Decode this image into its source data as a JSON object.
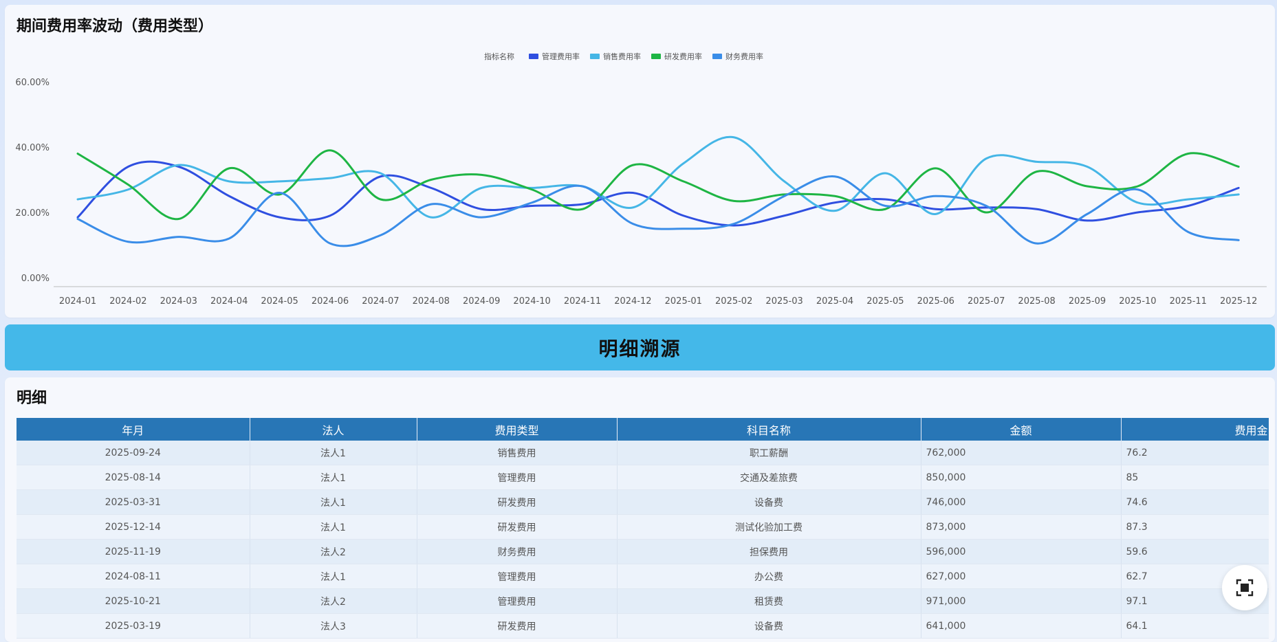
{
  "chart_section": {
    "title": "期间费用率波动（费用类型）"
  },
  "chart_data": {
    "type": "line",
    "title": "期间费用率波动（费用类型）",
    "legend_title": "指标名称",
    "legend_position": "top-center",
    "categories": [
      "2024-01",
      "2024-02",
      "2024-03",
      "2024-04",
      "2024-05",
      "2024-06",
      "2024-07",
      "2024-08",
      "2024-09",
      "2024-10",
      "2024-11",
      "2024-12",
      "2025-01",
      "2025-02",
      "2025-03",
      "2025-04",
      "2025-05",
      "2025-06",
      "2025-07",
      "2025-08",
      "2025-09",
      "2025-10",
      "2025-11",
      "2025-12"
    ],
    "y_ticks": [
      "0.00%",
      "20.00%",
      "40.00%",
      "60.00%"
    ],
    "ylim": [
      0,
      60
    ],
    "grid": false,
    "series": [
      {
        "name": "管理费用率",
        "color": "#2f4fe0",
        "values": [
          18.5,
          34,
          34,
          25,
          18.5,
          19,
          31,
          27.5,
          21,
          22,
          22.5,
          26,
          19,
          16,
          19,
          23,
          24,
          21,
          21.5,
          21,
          17.5,
          20,
          22,
          27.5
        ]
      },
      {
        "name": "销售费用率",
        "color": "#45b6e6",
        "values": [
          24,
          27,
          34.5,
          29.5,
          29.5,
          30.5,
          32,
          18.5,
          27.5,
          27.5,
          28,
          21.5,
          35,
          43,
          29.5,
          20.5,
          32,
          19.5,
          36.5,
          35.5,
          34,
          23,
          24,
          25.5
        ]
      },
      {
        "name": "研发费用率",
        "color": "#1eb544",
        "values": [
          38,
          28.5,
          18,
          33.5,
          25.5,
          39,
          24,
          30,
          31.5,
          27,
          21,
          34.5,
          29.5,
          23.5,
          25.5,
          25,
          21,
          33.5,
          20,
          32.5,
          28,
          28,
          38,
          34
        ]
      },
      {
        "name": "财务费用率",
        "color": "#3a8de8",
        "values": [
          18,
          11,
          12.5,
          12,
          26,
          10.5,
          13,
          22.5,
          18.5,
          23,
          28,
          16.5,
          15,
          16.5,
          25,
          31,
          22,
          25,
          22,
          10.5,
          19.5,
          27,
          14,
          11.5
        ]
      }
    ]
  },
  "banner": {
    "title": "明细溯源"
  },
  "table_section": {
    "title": "明细",
    "columns": [
      "年月",
      "法人",
      "费用类型",
      "科目名称",
      "金额",
      "费用金"
    ],
    "rows": [
      [
        "2025-09-24",
        "法人1",
        "销售费用",
        "职工薪酬",
        "762,000",
        "76.2"
      ],
      [
        "2025-08-14",
        "法人1",
        "管理费用",
        "交通及差旅费",
        "850,000",
        "85"
      ],
      [
        "2025-03-31",
        "法人1",
        "研发费用",
        "设备费",
        "746,000",
        "74.6"
      ],
      [
        "2025-12-14",
        "法人1",
        "研发费用",
        "测试化验加工费",
        "873,000",
        "87.3"
      ],
      [
        "2025-11-19",
        "法人2",
        "财务费用",
        "担保费用",
        "596,000",
        "59.6"
      ],
      [
        "2024-08-11",
        "法人1",
        "管理费用",
        "办公费",
        "627,000",
        "62.7"
      ],
      [
        "2025-10-21",
        "法人2",
        "管理费用",
        "租赁费",
        "971,000",
        "97.1"
      ],
      [
        "2025-03-19",
        "法人3",
        "研发费用",
        "设备费",
        "641,000",
        "64.1"
      ]
    ]
  },
  "fullscreen_button": {
    "icon": "fullscreen-icon"
  }
}
